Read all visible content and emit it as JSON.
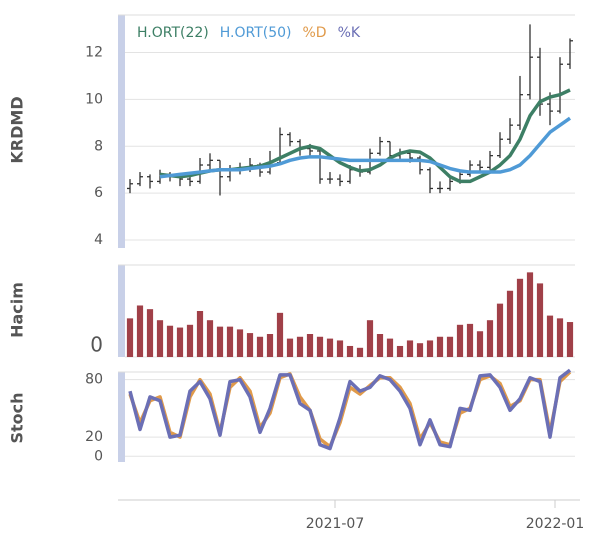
{
  "chart_data": [
    {
      "type": "ohlc",
      "ylabel": "KRDMD",
      "color": "#333333",
      "open": [
        6.2,
        6.4,
        6.7,
        6.5,
        6.8,
        6.7,
        6.6,
        6.5,
        7.2,
        7.4,
        6.7,
        7.0,
        7.1,
        7.2,
        6.9,
        7.3,
        8.5,
        8.2,
        7.9,
        7.8,
        6.6,
        6.6,
        6.5,
        7.0,
        6.9,
        7.7,
        8.2,
        7.6,
        7.7,
        7.5,
        7.0,
        6.2,
        6.2,
        6.5,
        6.8,
        7.2,
        7.1,
        7.6,
        8.3,
        8.9,
        10.2,
        11.8,
        9.8,
        9.5,
        11.5
      ],
      "high": [
        6.6,
        6.9,
        6.8,
        7.0,
        6.9,
        6.8,
        6.8,
        7.5,
        7.7,
        7.4,
        7.2,
        7.3,
        7.5,
        7.3,
        7.8,
        8.8,
        8.6,
        8.3,
        8.1,
        7.9,
        6.9,
        6.8,
        7.2,
        7.2,
        7.9,
        8.4,
        8.2,
        7.9,
        7.8,
        7.6,
        7.1,
        6.5,
        6.7,
        7.0,
        7.4,
        7.4,
        7.8,
        8.6,
        9.2,
        11.0,
        13.2,
        12.2,
        10.3,
        11.8,
        12.6
      ],
      "low": [
        6.0,
        6.3,
        6.2,
        6.4,
        6.5,
        6.3,
        6.3,
        6.4,
        7.0,
        5.9,
        6.5,
        6.8,
        6.9,
        6.7,
        6.8,
        7.2,
        8.0,
        7.6,
        7.5,
        6.4,
        6.4,
        6.3,
        6.4,
        6.7,
        6.8,
        7.6,
        7.4,
        7.4,
        7.3,
        6.8,
        6.0,
        6.0,
        6.1,
        6.4,
        6.7,
        6.9,
        7.0,
        7.5,
        8.1,
        8.7,
        10.0,
        9.3,
        8.9,
        9.4,
        11.3
      ],
      "close": [
        6.4,
        6.7,
        6.5,
        6.8,
        6.7,
        6.6,
        6.5,
        7.2,
        7.4,
        6.7,
        7.0,
        7.1,
        7.2,
        6.9,
        7.3,
        8.5,
        8.2,
        7.9,
        7.8,
        6.6,
        6.6,
        6.5,
        7.0,
        6.9,
        7.7,
        8.2,
        7.6,
        7.7,
        7.5,
        7.0,
        6.2,
        6.2,
        6.5,
        6.8,
        7.2,
        7.1,
        7.6,
        8.3,
        8.9,
        10.2,
        11.8,
        9.8,
        9.5,
        11.5,
        12.5
      ],
      "series": [
        {
          "name": "H.ORT(22)",
          "color": "#3d7f65",
          "values": [
            null,
            null,
            null,
            6.8,
            6.75,
            6.7,
            6.75,
            6.85,
            6.95,
            7.0,
            7.0,
            7.05,
            7.1,
            7.15,
            7.3,
            7.5,
            7.7,
            7.9,
            8.0,
            7.9,
            7.6,
            7.3,
            7.1,
            6.95,
            7.0,
            7.2,
            7.5,
            7.7,
            7.8,
            7.75,
            7.5,
            7.1,
            6.7,
            6.5,
            6.5,
            6.7,
            6.9,
            7.2,
            7.6,
            8.3,
            9.3,
            9.9,
            10.1,
            10.2,
            10.4
          ]
        },
        {
          "name": "H.ORT(50)",
          "color": "#4f9ad6",
          "values": [
            null,
            null,
            null,
            6.7,
            6.75,
            6.8,
            6.85,
            6.9,
            6.95,
            7.0,
            7.0,
            7.0,
            7.05,
            7.1,
            7.15,
            7.25,
            7.4,
            7.5,
            7.55,
            7.55,
            7.5,
            7.45,
            7.4,
            7.4,
            7.4,
            7.4,
            7.4,
            7.4,
            7.4,
            7.4,
            7.35,
            7.2,
            7.05,
            6.95,
            6.9,
            6.9,
            6.9,
            6.9,
            7.0,
            7.2,
            7.6,
            8.1,
            8.6,
            8.9,
            9.2
          ]
        }
      ],
      "ylim": [
        3.66,
        13.6
      ],
      "yticks": [
        4,
        6,
        8,
        10,
        12
      ],
      "grid": true
    },
    {
      "type": "bar",
      "ylabel": "Hacim",
      "color": "#a04048",
      "values": [
        42,
        56,
        52,
        40,
        34,
        32,
        35,
        50,
        40,
        33,
        33,
        30,
        26,
        22,
        25,
        48,
        20,
        22,
        25,
        22,
        20,
        18,
        12,
        10,
        40,
        25,
        20,
        12,
        18,
        15,
        18,
        22,
        22,
        35,
        36,
        28,
        40,
        58,
        72,
        85,
        92,
        80,
        45,
        42,
        38
      ],
      "ylim": [
        0,
        100
      ],
      "yticks": [
        0
      ],
      "grid": true
    },
    {
      "type": "line",
      "ylabel": "Stoch",
      "series": [
        {
          "name": "%D",
          "color": "#e09a4a",
          "values": [
            65,
            35,
            58,
            62,
            25,
            20,
            62,
            80,
            65,
            25,
            72,
            82,
            68,
            30,
            45,
            82,
            86,
            62,
            48,
            18,
            10,
            35,
            72,
            65,
            74,
            82,
            82,
            72,
            55,
            18,
            35,
            15,
            12,
            45,
            50,
            80,
            84,
            76,
            52,
            58,
            80,
            80,
            25,
            78,
            88
          ]
        },
        {
          "name": "%K",
          "color": "#6b6fb5",
          "values": [
            68,
            28,
            62,
            58,
            20,
            22,
            68,
            78,
            60,
            22,
            78,
            80,
            62,
            25,
            50,
            85,
            85,
            55,
            48,
            12,
            8,
            40,
            78,
            68,
            72,
            84,
            80,
            68,
            50,
            12,
            38,
            12,
            10,
            50,
            48,
            84,
            85,
            72,
            48,
            60,
            82,
            78,
            20,
            82,
            90
          ]
        }
      ],
      "ylim": [
        -6,
        88
      ],
      "yticks": [
        0,
        20,
        80
      ],
      "grid": true,
      "xlim": [
        -0.5,
        44.5
      ],
      "xticks": [
        {
          "value": 20.5,
          "label": "2021-07"
        },
        {
          "value": 42.5,
          "label": "2022-01"
        }
      ]
    }
  ]
}
